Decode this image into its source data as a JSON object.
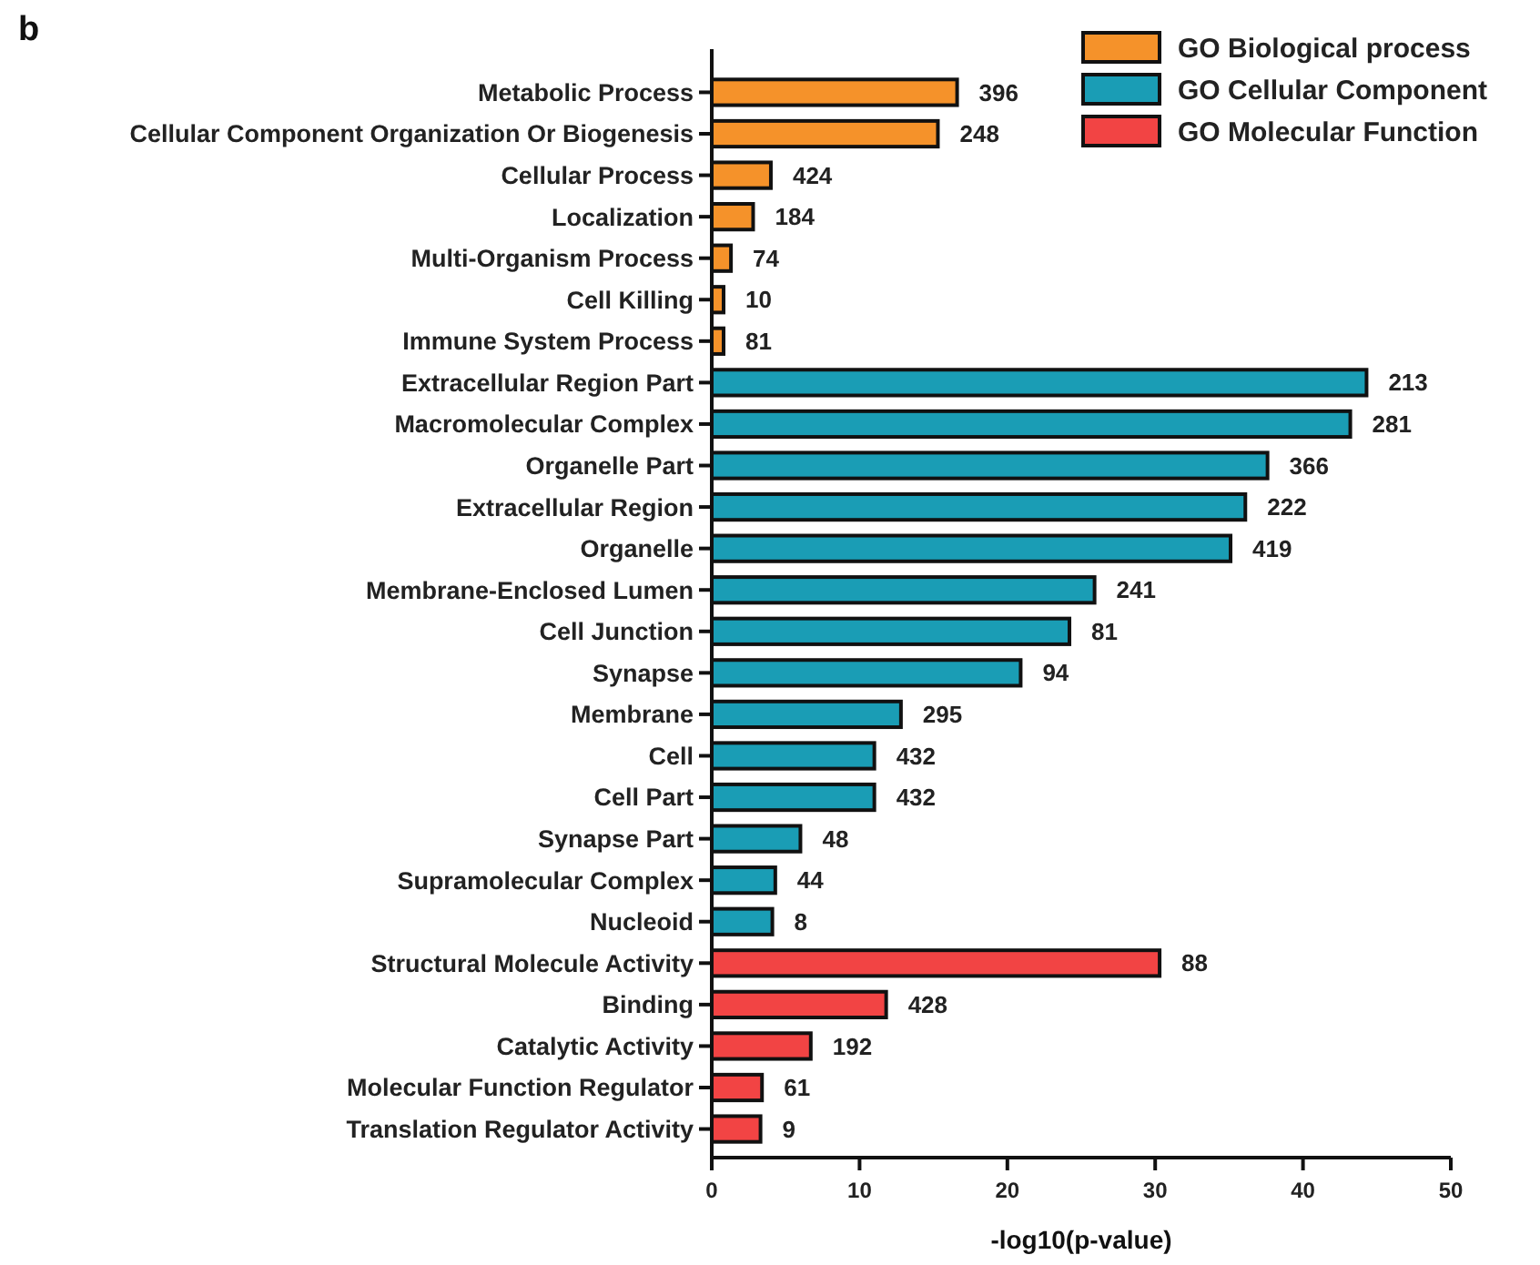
{
  "chart_data": {
    "type": "bar",
    "orientation": "horizontal",
    "title": "b",
    "xlabel": "-log10(p-value)",
    "categories": [
      "Metabolic Process",
      "Cellular Component Organization Or Biogenesis",
      "Cellular Process",
      "Localization",
      "Multi-Organism Process",
      "Cell Killing",
      "Immune System Process",
      "Extracellular Region Part",
      "Macromolecular Complex",
      "Organelle Part",
      "Extracellular Region",
      "Organelle",
      "Membrane-Enclosed Lumen",
      "Cell Junction",
      "Synapse",
      "Membrane",
      "Cell",
      "Cell Part",
      "Synapse Part",
      "Supramolecular Complex",
      "Nucleoid",
      "Structural Molecule Activity",
      "Binding",
      "Catalytic Activity",
      "Molecular Function Regulator",
      "Translation Regulator Activity"
    ],
    "series": [
      {
        "name": "GO Biological process",
        "color": "#f5922a",
        "values": [
          16.6,
          15.3,
          4.0,
          2.8,
          1.3,
          0.8,
          0.8,
          null,
          null,
          null,
          null,
          null,
          null,
          null,
          null,
          null,
          null,
          null,
          null,
          null,
          null,
          null,
          null,
          null,
          null,
          null
        ]
      },
      {
        "name": "GO Cellular Component",
        "color": "#1a9db5",
        "values": [
          null,
          null,
          null,
          null,
          null,
          null,
          null,
          44.3,
          43.2,
          37.6,
          36.1,
          35.1,
          25.9,
          24.2,
          20.9,
          12.8,
          11.0,
          11.0,
          6.0,
          4.3,
          4.1,
          null,
          null,
          null,
          null,
          null
        ]
      },
      {
        "name": "GO Molecular Function",
        "color": "#f24444",
        "values": [
          null,
          null,
          null,
          null,
          null,
          null,
          null,
          null,
          null,
          null,
          null,
          null,
          null,
          null,
          null,
          null,
          null,
          null,
          null,
          null,
          null,
          30.3,
          11.8,
          6.7,
          3.4,
          3.3
        ]
      }
    ],
    "annotations": [
      {
        "text": "396",
        "x": 16.6,
        "y": "Metabolic Process"
      },
      {
        "text": "248",
        "x": 15.3,
        "y": "Cellular Component Organization Or Biogenesis"
      },
      {
        "text": "424",
        "x": 4.0,
        "y": "Cellular Process"
      },
      {
        "text": "184",
        "x": 2.8,
        "y": "Localization"
      },
      {
        "text": "74",
        "x": 1.3,
        "y": "Multi-Organism Process"
      },
      {
        "text": "10",
        "x": 0.8,
        "y": "Cell Killing"
      },
      {
        "text": "81",
        "x": 0.8,
        "y": "Immune System Process"
      },
      {
        "text": "213",
        "x": 44.3,
        "y": "Extracellular Region Part"
      },
      {
        "text": "281",
        "x": 43.2,
        "y": "Macromolecular Complex"
      },
      {
        "text": "366",
        "x": 37.6,
        "y": "Organelle Part"
      },
      {
        "text": "222",
        "x": 36.1,
        "y": "Extracellular Region"
      },
      {
        "text": "419",
        "x": 35.1,
        "y": "Organelle"
      },
      {
        "text": "241",
        "x": 25.9,
        "y": "Membrane-Enclosed Lumen"
      },
      {
        "text": "81",
        "x": 24.2,
        "y": "Cell Junction"
      },
      {
        "text": "94",
        "x": 20.9,
        "y": "Synapse"
      },
      {
        "text": "295",
        "x": 12.8,
        "y": "Membrane"
      },
      {
        "text": "432",
        "x": 11.0,
        "y": "Cell"
      },
      {
        "text": "432",
        "x": 11.0,
        "y": "Cell Part"
      },
      {
        "text": "48",
        "x": 6.0,
        "y": "Synapse Part"
      },
      {
        "text": "44",
        "x": 4.3,
        "y": "Supramolecular Complex"
      },
      {
        "text": "8",
        "x": 4.1,
        "y": "Nucleoid"
      },
      {
        "text": "88",
        "x": 30.3,
        "y": "Structural Molecule Activity"
      },
      {
        "text": "428",
        "x": 11.8,
        "y": "Binding"
      },
      {
        "text": "192",
        "x": 6.7,
        "y": "Catalytic Activity"
      },
      {
        "text": "61",
        "x": 3.4,
        "y": "Molecular Function Regulator"
      },
      {
        "text": "9",
        "x": 3.3,
        "y": "Translation Regulator Activity"
      }
    ],
    "xlim": [
      0,
      50
    ],
    "xticks": [
      0,
      10,
      20,
      30,
      40,
      50
    ],
    "grid": false,
    "legend": "top right"
  }
}
